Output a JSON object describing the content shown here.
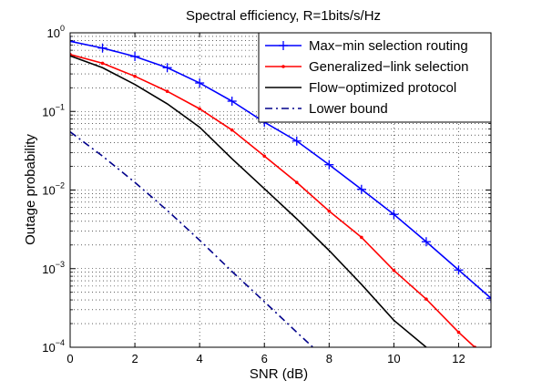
{
  "chart_data": {
    "type": "line",
    "title": "Spectral efficiency, R=1bits/s/Hz",
    "xlabel": "SNR (dB)",
    "ylabel": "Outage probability",
    "xlim": [
      0,
      13
    ],
    "ylim": [
      0.0001,
      1
    ],
    "yscale": "log",
    "grid": true,
    "legend_position": "top-right",
    "x_ticks": [
      0,
      2,
      4,
      6,
      8,
      10,
      12
    ],
    "x_tick_labels": [
      "0",
      "2",
      "4",
      "6",
      "8",
      "10",
      "12"
    ],
    "y_ticks": [
      {
        "value": 1,
        "base": "10",
        "exp": "0"
      },
      {
        "value": 0.1,
        "base": "10",
        "exp": "−1"
      },
      {
        "value": 0.01,
        "base": "10",
        "exp": "−2"
      },
      {
        "value": 0.001,
        "base": "10",
        "exp": "−3"
      },
      {
        "value": 0.0001,
        "base": "10",
        "exp": "−4"
      }
    ],
    "series": [
      {
        "name": "Max−min selection routing",
        "color": "#0000ff",
        "line_style": "solid",
        "marker": "plus",
        "x": [
          0,
          1,
          2,
          3,
          4,
          5,
          6,
          7,
          8,
          9,
          10,
          11,
          12,
          13
        ],
        "y": [
          0.78,
          0.64,
          0.5,
          0.36,
          0.23,
          0.135,
          0.073,
          0.042,
          0.021,
          0.0102,
          0.0049,
          0.0022,
          0.00096,
          0.00042
        ]
      },
      {
        "name": "Generalized−link selection",
        "color": "#ff0000",
        "line_style": "solid",
        "marker": "point",
        "x": [
          0,
          1,
          2,
          3,
          4,
          5,
          6,
          7,
          8,
          9,
          10,
          11,
          12,
          12.5
        ],
        "y": [
          0.53,
          0.41,
          0.28,
          0.18,
          0.108,
          0.058,
          0.027,
          0.0125,
          0.0054,
          0.0025,
          0.00095,
          0.00041,
          0.000155,
          0.0001
        ]
      },
      {
        "name": "Flow−optimized protocol",
        "color": "#000000",
        "line_style": "solid",
        "marker": "none",
        "x": [
          0,
          1,
          2,
          3,
          4,
          5,
          6,
          7,
          8,
          9,
          10,
          11
        ],
        "y": [
          0.51,
          0.36,
          0.22,
          0.125,
          0.063,
          0.025,
          0.0104,
          0.0043,
          0.0017,
          0.00063,
          0.00022,
          0.0001
        ]
      },
      {
        "name": "Lower bound",
        "color": "#00008b",
        "line_style": "dashdot",
        "marker": "none",
        "x": [
          0,
          1,
          2,
          3,
          4,
          5,
          6,
          7,
          7.5
        ],
        "y": [
          0.055,
          0.027,
          0.0125,
          0.0055,
          0.0023,
          0.00092,
          0.00038,
          0.000155,
          0.0001
        ]
      }
    ]
  }
}
